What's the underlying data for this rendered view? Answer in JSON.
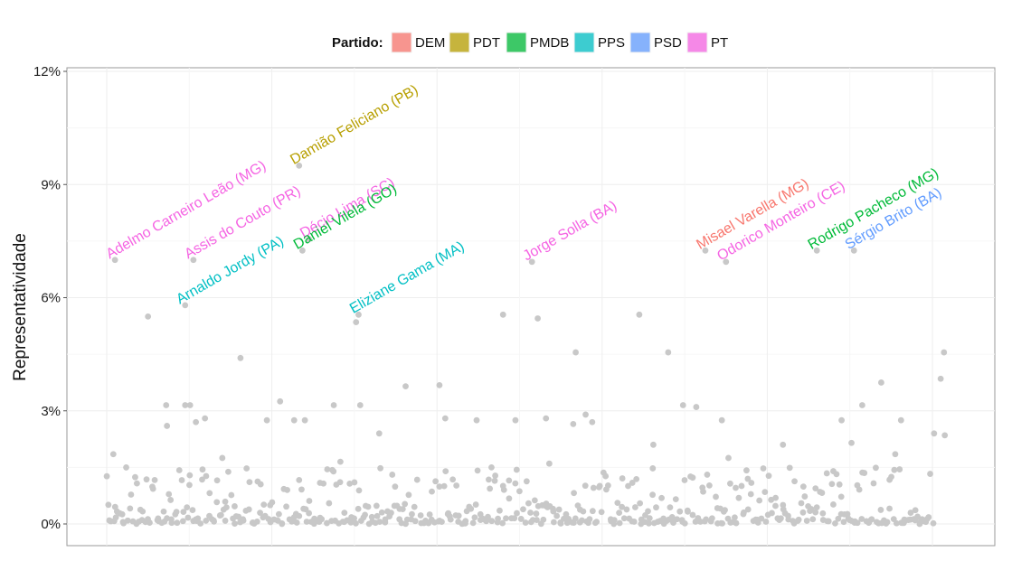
{
  "chart_data": {
    "type": "scatter",
    "title": "",
    "xlabel": "",
    "ylabel": "Representatividade",
    "ylim": [
      -0.6,
      12
    ],
    "y_ticks": [
      0,
      3,
      6,
      9,
      12
    ],
    "y_tick_labels": [
      "0%",
      "3%",
      "6%",
      "9%",
      "12%"
    ],
    "x_range": [
      -5,
      1050
    ],
    "legend": {
      "title": "Partido:",
      "position": "top",
      "entries": [
        {
          "name": "DEM",
          "color": "#F8766D"
        },
        {
          "name": "PDT",
          "color": "#B79F00"
        },
        {
          "name": "PMDB",
          "color": "#00BA38"
        },
        {
          "name": "PPS",
          "color": "#00BFC4"
        },
        {
          "name": "PSD",
          "color": "#619CFF"
        },
        {
          "name": "PT",
          "color": "#F564E3"
        }
      ]
    },
    "labeled_points": [
      {
        "label": "Adelmo Carneiro Leão (MG)",
        "party": "PT",
        "x": 10,
        "y": 7.0
      },
      {
        "label": "Assis do Couto (PR)",
        "party": "PT",
        "x": 105,
        "y": 7.0
      },
      {
        "label": "Arnaldo Jordy (PA)",
        "party": "PPS",
        "x": 95,
        "y": 5.8
      },
      {
        "label": "Damião Feliciano (PB)",
        "party": "PDT",
        "x": 233,
        "y": 9.5
      },
      {
        "label": "Décio Lima (SC)",
        "party": "PT",
        "x": 245,
        "y": 7.55
      },
      {
        "label": "Daniel Vilela (GO)",
        "party": "PMDB",
        "x": 237,
        "y": 7.25
      },
      {
        "label": "Eliziane Gama (MA)",
        "party": "PPS",
        "x": 305,
        "y": 5.55
      },
      {
        "label": "Jorge Solla (BA)",
        "party": "PT",
        "x": 515,
        "y": 6.95
      },
      {
        "label": "Misael Varella (MG)",
        "party": "DEM",
        "x": 725,
        "y": 7.25
      },
      {
        "label": "Odorico Monteiro (CE)",
        "party": "PT",
        "x": 750,
        "y": 6.95
      },
      {
        "label": "Rodrigo Pacheco (MG)",
        "party": "PMDB",
        "x": 860,
        "y": 7.25
      },
      {
        "label": "Sérgio Brito (BA)",
        "party": "PSD",
        "x": 905,
        "y": 7.25
      }
    ],
    "points_color": "#C8C8C8",
    "notable_points": [
      {
        "x": 8,
        "y": 1.85
      },
      {
        "x": 50,
        "y": 5.5
      },
      {
        "x": 72,
        "y": 3.15
      },
      {
        "x": 73,
        "y": 2.6
      },
      {
        "x": 95,
        "y": 3.15
      },
      {
        "x": 101,
        "y": 3.15
      },
      {
        "x": 108,
        "y": 2.7
      },
      {
        "x": 119,
        "y": 2.8
      },
      {
        "x": 140,
        "y": 1.75
      },
      {
        "x": 162,
        "y": 4.4
      },
      {
        "x": 194,
        "y": 2.75
      },
      {
        "x": 210,
        "y": 3.25
      },
      {
        "x": 227,
        "y": 2.75
      },
      {
        "x": 240,
        "y": 2.75
      },
      {
        "x": 275,
        "y": 3.15
      },
      {
        "x": 283,
        "y": 1.65
      },
      {
        "x": 302,
        "y": 5.35
      },
      {
        "x": 307,
        "y": 3.15
      },
      {
        "x": 330,
        "y": 2.4
      },
      {
        "x": 362,
        "y": 3.65
      },
      {
        "x": 403,
        "y": 3.68
      },
      {
        "x": 410,
        "y": 2.8
      },
      {
        "x": 448,
        "y": 2.75
      },
      {
        "x": 466,
        "y": 1.5
      },
      {
        "x": 480,
        "y": 5.55
      },
      {
        "x": 495,
        "y": 2.75
      },
      {
        "x": 522,
        "y": 5.45
      },
      {
        "x": 532,
        "y": 2.8
      },
      {
        "x": 536,
        "y": 1.6
      },
      {
        "x": 565,
        "y": 2.65
      },
      {
        "x": 568,
        "y": 4.55
      },
      {
        "x": 580,
        "y": 2.9
      },
      {
        "x": 588,
        "y": 2.7
      },
      {
        "x": 645,
        "y": 5.55
      },
      {
        "x": 662,
        "y": 2.1
      },
      {
        "x": 680,
        "y": 4.55
      },
      {
        "x": 698,
        "y": 3.15
      },
      {
        "x": 714,
        "y": 3.1
      },
      {
        "x": 745,
        "y": 2.75
      },
      {
        "x": 753,
        "y": 1.75
      },
      {
        "x": 819,
        "y": 2.1
      },
      {
        "x": 880,
        "y": 1.4
      },
      {
        "x": 890,
        "y": 2.75
      },
      {
        "x": 902,
        "y": 2.15
      },
      {
        "x": 915,
        "y": 3.15
      },
      {
        "x": 938,
        "y": 3.75
      },
      {
        "x": 955,
        "y": 1.85
      },
      {
        "x": 962,
        "y": 2.75
      },
      {
        "x": 1002,
        "y": 2.4
      },
      {
        "x": 1010,
        "y": 3.85
      },
      {
        "x": 1014,
        "y": 4.55
      },
      {
        "x": 1015,
        "y": 2.35
      }
    ],
    "background_points": {
      "count": 513,
      "y_distribution": "mostly 0%-1.5%, dense near 0%"
    }
  }
}
